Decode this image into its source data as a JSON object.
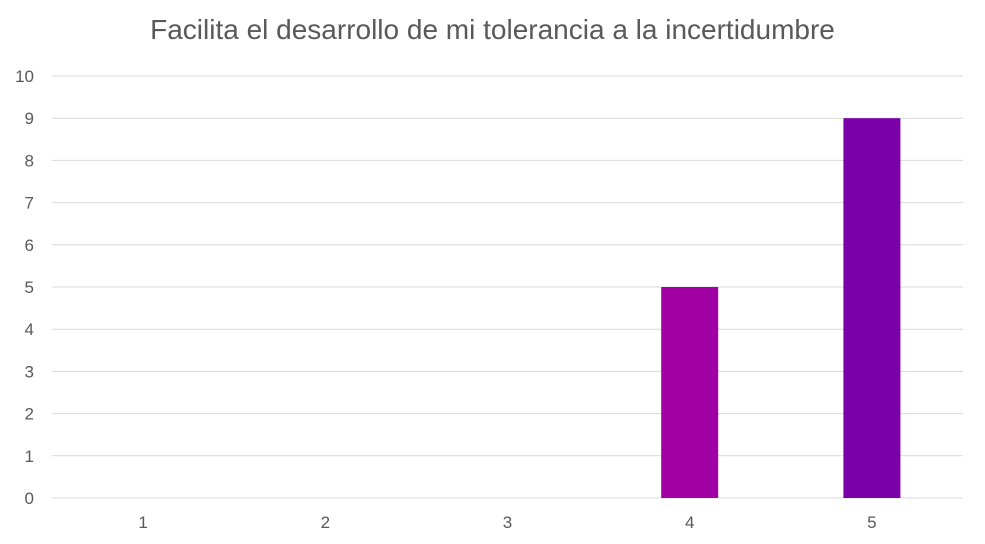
{
  "chart_data": {
    "type": "bar",
    "title": "Facilita el desarrollo de mi tolerancia a la incertidumbre",
    "xlabel": "",
    "ylabel": "",
    "categories": [
      "1",
      "2",
      "3",
      "4",
      "5"
    ],
    "values": [
      0,
      0,
      0,
      5,
      9
    ],
    "bar_colors": [
      "#a100a5",
      "#a100a5",
      "#a100a5",
      "#a100a5",
      "#7a00a8"
    ],
    "ylim": [
      0,
      10
    ],
    "yticks": [
      0,
      1,
      2,
      3,
      4,
      5,
      6,
      7,
      8,
      9,
      10
    ],
    "grid": true,
    "legend": "none",
    "gridline_color": "#d9d9d9",
    "text_color": "#595959"
  }
}
